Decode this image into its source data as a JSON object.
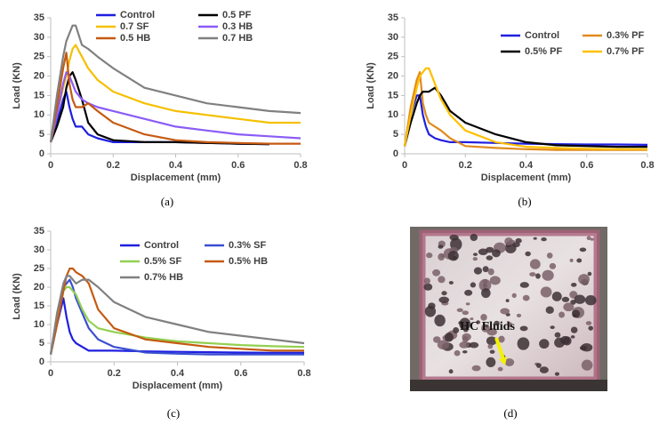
{
  "chart_data": [
    {
      "type": "line",
      "caption": "(a)",
      "xlabel": "Displacement (mm)",
      "ylabel": "Load (KN)",
      "x": [
        0,
        0.02,
        0.04,
        0.05,
        0.06,
        0.07,
        0.08,
        0.1,
        0.12,
        0.15,
        0.2,
        0.3,
        0.4,
        0.5,
        0.6,
        0.7,
        0.8
      ],
      "xlim": [
        0,
        0.8
      ],
      "xticks": [
        0,
        0.2,
        0.4,
        0.6,
        0.8
      ],
      "ylim": [
        0,
        35
      ],
      "yticks": [
        0,
        5,
        10,
        15,
        20,
        25,
        30,
        35
      ],
      "series": [
        {
          "name": "Control",
          "color": "#1f1fe0",
          "values": [
            3,
            8,
            14,
            16,
            12,
            9,
            7,
            7,
            5,
            4,
            3,
            3,
            3,
            2.8,
            2.6,
            2.5,
            null
          ]
        },
        {
          "name": "0.5 PF",
          "color": "#000000",
          "values": [
            3,
            7,
            12,
            17,
            20,
            21,
            19,
            14,
            8,
            5,
            3.5,
            3,
            3,
            2.8,
            2.6,
            2.5,
            null
          ]
        },
        {
          "name": "0.7 SF",
          "color": "#f5c000",
          "values": [
            3,
            10,
            17,
            20,
            24,
            27,
            28,
            25,
            22,
            19,
            16,
            13,
            11,
            10,
            9,
            8,
            8
          ]
        },
        {
          "name": "0.3 HB",
          "color": "#8a5cf5",
          "values": [
            3,
            10,
            18,
            21,
            20,
            18,
            16,
            14,
            13,
            12,
            11,
            9,
            7,
            6,
            5,
            4.5,
            4
          ]
        },
        {
          "name": "0.5 HB",
          "color": "#c55a11",
          "values": [
            3,
            12,
            22,
            26,
            18,
            14,
            12,
            12,
            13,
            11,
            8,
            5,
            3.5,
            3,
            2.8,
            2.6,
            2.6
          ]
        },
        {
          "name": "0.7 HB",
          "color": "#808080",
          "values": [
            3,
            15,
            25,
            29,
            31,
            33,
            33,
            28,
            27,
            25,
            22,
            17,
            15,
            13,
            12,
            11,
            10.5
          ]
        }
      ]
    },
    {
      "type": "line",
      "caption": "(b)",
      "xlabel": "Displacement (mm)",
      "ylabel": "Load (KN)",
      "x": [
        0,
        0.02,
        0.04,
        0.05,
        0.06,
        0.07,
        0.08,
        0.1,
        0.12,
        0.15,
        0.2,
        0.3,
        0.4,
        0.5,
        0.6,
        0.7,
        0.8
      ],
      "xlim": [
        0,
        0.8
      ],
      "xticks": [
        0,
        0.2,
        0.4,
        0.6,
        0.8
      ],
      "ylim": [
        0,
        35
      ],
      "yticks": [
        0,
        5,
        10,
        15,
        20,
        25,
        30,
        35
      ],
      "series": [
        {
          "name": "Control",
          "color": "#1f1fe0",
          "values": [
            2,
            10,
            15,
            15,
            10,
            7,
            5,
            4,
            3.5,
            3,
            3,
            2.8,
            2.6,
            2.5,
            2.4,
            2.4,
            2.3
          ]
        },
        {
          "name": "0.3% PF",
          "color": "#e08a1e",
          "values": [
            2,
            12,
            19,
            21,
            13,
            10,
            8,
            7,
            6,
            4,
            2,
            1.5,
            1.2,
            1,
            1,
            1,
            1
          ]
        },
        {
          "name": "0.5% PF",
          "color": "#000000",
          "values": [
            2,
            8,
            13,
            15,
            16,
            16,
            16,
            17,
            15,
            11,
            8,
            5,
            3,
            2.2,
            2,
            1.8,
            1.8
          ]
        },
        {
          "name": "0.7% PF",
          "color": "#ffc000",
          "values": [
            2,
            10,
            17,
            20,
            21,
            22,
            22,
            18,
            14,
            10,
            6,
            3,
            1.8,
            1.5,
            1.3,
            1.2,
            1.2
          ]
        }
      ]
    },
    {
      "type": "line",
      "caption": "(c)",
      "xlabel": "Displacement (mm)",
      "ylabel": "Load (KN)",
      "x": [
        0,
        0.02,
        0.04,
        0.05,
        0.06,
        0.07,
        0.08,
        0.1,
        0.12,
        0.15,
        0.2,
        0.3,
        0.4,
        0.5,
        0.6,
        0.7,
        0.8
      ],
      "xlim": [
        0,
        0.8
      ],
      "xticks": [
        0,
        0.2,
        0.4,
        0.6,
        0.8
      ],
      "ylim": [
        0,
        35
      ],
      "yticks": [
        0,
        5,
        10,
        15,
        20,
        25,
        30,
        35
      ],
      "series": [
        {
          "name": "Control",
          "color": "#1f1fe0",
          "values": [
            2,
            10,
            17,
            12,
            8,
            6,
            5,
            4,
            3,
            3,
            3,
            2.8,
            2.7,
            2.6,
            2.5,
            2.4,
            2.4
          ]
        },
        {
          "name": "0.3% SF",
          "color": "#3a4fd1",
          "values": [
            2,
            12,
            20,
            21,
            22,
            20,
            17,
            13,
            9,
            6,
            4,
            2.5,
            2.2,
            2,
            2,
            2,
            2
          ]
        },
        {
          "name": "0.5% SF",
          "color": "#92d050",
          "values": [
            2,
            12,
            19,
            20,
            20,
            19,
            18,
            14,
            11,
            9,
            8,
            6.5,
            5.5,
            5,
            4.5,
            4.2,
            4
          ]
        },
        {
          "name": "0.5% HB",
          "color": "#c55a11",
          "values": [
            2,
            10,
            19,
            23,
            25,
            25,
            24,
            23,
            21,
            14,
            9,
            6,
            5,
            4,
            3.5,
            3,
            3
          ]
        },
        {
          "name": "0.7% HB",
          "color": "#808080",
          "values": [
            2,
            13,
            21,
            23,
            23,
            22,
            21,
            22,
            22,
            20,
            16,
            12,
            10,
            8,
            7,
            6,
            5
          ]
        }
      ]
    }
  ],
  "photo": {
    "annotation": "HC Fluids",
    "caption": "(d)"
  }
}
